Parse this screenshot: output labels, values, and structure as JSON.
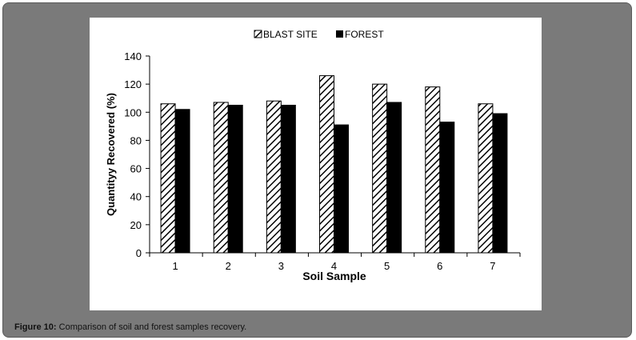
{
  "caption": {
    "label": "Figure 10:",
    "text": " Comparison of soil and forest samples recovery."
  },
  "chart_data": {
    "type": "bar",
    "xlabel": "Soil Sample",
    "ylabel": "Quantityy Recovered (%)",
    "categories": [
      "1",
      "2",
      "3",
      "4",
      "5",
      "6",
      "7"
    ],
    "ylim": [
      0,
      140
    ],
    "yticks": [
      0,
      20,
      40,
      60,
      80,
      100,
      120,
      140
    ],
    "grid": false,
    "legend_position": "top-center",
    "series": [
      {
        "name": "BLAST SITE",
        "pattern": "hatched",
        "color": "#000000",
        "values": [
          106,
          107,
          108,
          126,
          120,
          118,
          106
        ]
      },
      {
        "name": "FOREST",
        "pattern": "solid",
        "color": "#000000",
        "values": [
          102,
          105,
          105,
          91,
          107,
          93,
          99
        ]
      }
    ]
  }
}
